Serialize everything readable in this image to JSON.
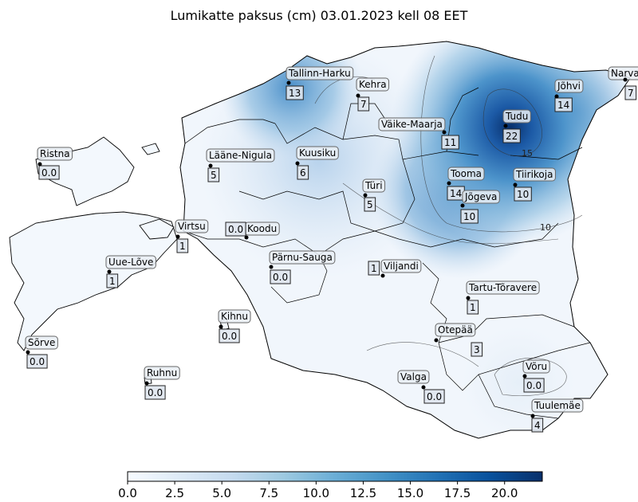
{
  "title": "Lumikatte paksus (cm) 03.01.2023 kell 08 EET",
  "colors": {
    "max": "#08306b",
    "mid": "#4292c6",
    "low": "#c6dbef",
    "min": "#f7fbff",
    "border": "#000000"
  },
  "contour_labels": [
    "15",
    "10"
  ],
  "colorbar": {
    "min": 0.0,
    "max": 22.0,
    "ticks": [
      "0.0",
      "2.5",
      "5.0",
      "7.5",
      "10.0",
      "12.5",
      "15.0",
      "17.5",
      "20.0"
    ]
  },
  "stations": [
    {
      "name": "Tallinn-Harku",
      "value": "13"
    },
    {
      "name": "Kehra",
      "value": "7"
    },
    {
      "name": "Narva",
      "value": "7"
    },
    {
      "name": "Jõhvi",
      "value": "14"
    },
    {
      "name": "Tudu",
      "value": "22"
    },
    {
      "name": "Väike-Maarja",
      "value": "11"
    },
    {
      "name": "Ristna",
      "value": "0.0"
    },
    {
      "name": "Lääne-Nigula",
      "value": "5"
    },
    {
      "name": "Kuusiku",
      "value": "6"
    },
    {
      "name": "Tooma",
      "value": "14"
    },
    {
      "name": "Tiirikoja",
      "value": "10"
    },
    {
      "name": "Türi",
      "value": "5"
    },
    {
      "name": "Jõgeva",
      "value": "10"
    },
    {
      "name": "Virtsu",
      "value": "1"
    },
    {
      "name": "Koodu",
      "value": "0.0"
    },
    {
      "name": "Uue-Lõve",
      "value": "1"
    },
    {
      "name": "Pärnu-Sauga",
      "value": "0.0"
    },
    {
      "name": "Viljandi",
      "value": "1"
    },
    {
      "name": "Tartu-Tõravere",
      "value": "1"
    },
    {
      "name": "Kihnu",
      "value": "0.0"
    },
    {
      "name": "Sõrve",
      "value": "0.0"
    },
    {
      "name": "Otepää",
      "value": "3"
    },
    {
      "name": "Ruhnu",
      "value": "0.0"
    },
    {
      "name": "Valga",
      "value": "0.0"
    },
    {
      "name": "Võru",
      "value": "0.0"
    },
    {
      "name": "Tuulemäe",
      "value": "4"
    }
  ]
}
